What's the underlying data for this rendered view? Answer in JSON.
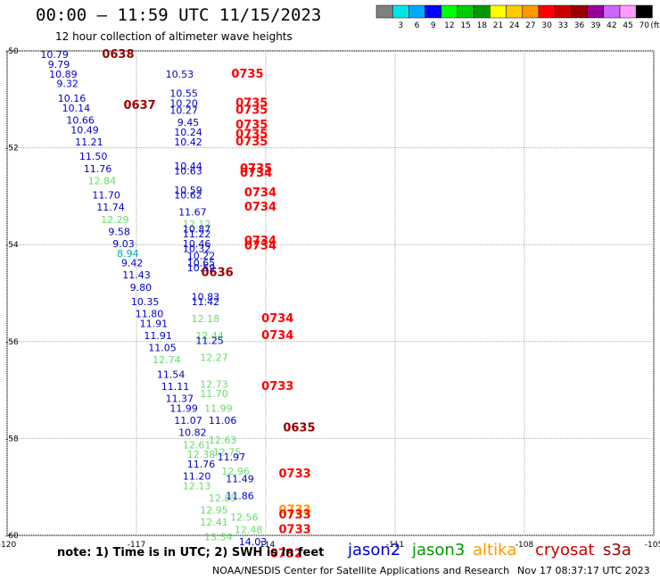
{
  "chart_data": {
    "type": "scatter",
    "title": "00:00 – 11:59 UTC 11/15/2023",
    "subtitle": "12 hour collection of altimeter wave heights",
    "xlim": [
      -120,
      -105
    ],
    "ylim": [
      -60,
      -50
    ],
    "x_ticks": [
      {
        "value": -120,
        "label": "-120"
      },
      {
        "value": -117,
        "label": "-117"
      },
      {
        "value": -114,
        "label": "-114"
      },
      {
        "value": -111,
        "label": "-111"
      },
      {
        "value": -108,
        "label": "-108"
      },
      {
        "value": -105,
        "label": "-105"
      }
    ],
    "y_ticks": [
      {
        "value": -50,
        "label": "-50"
      },
      {
        "value": -52,
        "label": "-52"
      },
      {
        "value": -54,
        "label": "-54"
      },
      {
        "value": -56,
        "label": "-56"
      },
      {
        "value": -58,
        "label": "-58"
      },
      {
        "value": -60,
        "label": "-60"
      }
    ],
    "grid": true,
    "colorbar": {
      "unit": "(ft)",
      "entries": [
        {
          "label": "",
          "color": "#808080"
        },
        {
          "label": "3",
          "color": "#00e6e6"
        },
        {
          "label": "6",
          "color": "#00aaff"
        },
        {
          "label": "9",
          "color": "#0000ff"
        },
        {
          "label": "12",
          "color": "#00ff00"
        },
        {
          "label": "15",
          "color": "#00cc00"
        },
        {
          "label": "18",
          "color": "#009900"
        },
        {
          "label": "21",
          "color": "#ffff00"
        },
        {
          "label": "24",
          "color": "#ffcc00"
        },
        {
          "label": "27",
          "color": "#ff9900"
        },
        {
          "label": "30",
          "color": "#ff0000"
        },
        {
          "label": "33",
          "color": "#cc0000"
        },
        {
          "label": "36",
          "color": "#990000"
        },
        {
          "label": "39",
          "color": "#990099"
        },
        {
          "label": "42",
          "color": "#cc66ff"
        },
        {
          "label": "45",
          "color": "#ff99ff"
        },
        {
          "label": "70",
          "color": "#000000"
        }
      ]
    },
    "time_labels": [
      {
        "text": "0638",
        "lon": -117.8,
        "lat": -50.15,
        "color": "#990000"
      },
      {
        "text": "0637",
        "lon": -117.3,
        "lat": -51.2,
        "color": "#990000"
      },
      {
        "text": "0636",
        "lon": -115.5,
        "lat": -54.65,
        "color": "#990000"
      },
      {
        "text": "0635",
        "lon": -113.6,
        "lat": -57.85,
        "color": "#990000"
      },
      {
        "text": "0735",
        "lon": -114.8,
        "lat": -50.55,
        "color": "#ff0000"
      },
      {
        "text": "0735",
        "lon": -114.7,
        "lat": -51.15,
        "color": "#ff0000"
      },
      {
        "text": "0735",
        "lon": -114.7,
        "lat": -51.3,
        "color": "#ff0000"
      },
      {
        "text": "0735",
        "lon": -114.7,
        "lat": -51.6,
        "color": "#ff0000"
      },
      {
        "text": "0735",
        "lon": -114.7,
        "lat": -51.8,
        "color": "#ff0000"
      },
      {
        "text": "0735",
        "lon": -114.7,
        "lat": -51.95,
        "color": "#ff0000"
      },
      {
        "text": "0735",
        "lon": -114.6,
        "lat": -52.5,
        "color": "#ff0000"
      },
      {
        "text": "0734",
        "lon": -114.6,
        "lat": -52.6,
        "color": "#ff0000"
      },
      {
        "text": "0734",
        "lon": -114.5,
        "lat": -53.0,
        "color": "#ff0000"
      },
      {
        "text": "0734",
        "lon": -114.5,
        "lat": -53.3,
        "color": "#ff0000"
      },
      {
        "text": "0734",
        "lon": -114.5,
        "lat": -54.0,
        "color": "#ff0000"
      },
      {
        "text": "0734",
        "lon": -114.5,
        "lat": -54.1,
        "color": "#ff0000"
      },
      {
        "text": "0734",
        "lon": -114.1,
        "lat": -55.6,
        "color": "#ff0000"
      },
      {
        "text": "0734",
        "lon": -114.1,
        "lat": -55.95,
        "color": "#ff0000"
      },
      {
        "text": "0733",
        "lon": -114.1,
        "lat": -57.0,
        "color": "#ff0000"
      },
      {
        "text": "0733",
        "lon": -113.7,
        "lat": -58.8,
        "color": "#ff0000"
      },
      {
        "text": "0733",
        "lon": -113.7,
        "lat": -59.55,
        "color": "#ff9900"
      },
      {
        "text": "0733",
        "lon": -113.7,
        "lat": -59.65,
        "color": "#ff0000"
      },
      {
        "text": "0733",
        "lon": -113.7,
        "lat": -59.95,
        "color": "#ff0000"
      },
      {
        "text": "0732",
        "lon": -113.9,
        "lat": -60.45,
        "color": "#ff0000"
      }
    ],
    "series": [
      {
        "points": [
          {
            "lon": -118.9,
            "lat": -50.15,
            "value": "10.79",
            "color": "#0000cc"
          },
          {
            "lon": -118.8,
            "lat": -50.35,
            "value": "9.79",
            "color": "#0000cc"
          },
          {
            "lon": -118.7,
            "lat": -50.55,
            "value": "10.89",
            "color": "#0000cc"
          },
          {
            "lon": -118.6,
            "lat": -50.75,
            "value": "9.32",
            "color": "#0000cc"
          },
          {
            "lon": -118.5,
            "lat": -51.05,
            "value": "10.16",
            "color": "#0000cc"
          },
          {
            "lon": -118.4,
            "lat": -51.25,
            "value": "10.14",
            "color": "#0000cc"
          },
          {
            "lon": -118.3,
            "lat": -51.5,
            "value": "10.66",
            "color": "#0000cc"
          },
          {
            "lon": -118.2,
            "lat": -51.7,
            "value": "10.49",
            "color": "#0000cc"
          },
          {
            "lon": -118.1,
            "lat": -51.95,
            "value": "11.21",
            "color": "#0000cc"
          },
          {
            "lon": -118.0,
            "lat": -52.25,
            "value": "11.50",
            "color": "#0000cc"
          },
          {
            "lon": -117.9,
            "lat": -52.5,
            "value": "11.76",
            "color": "#0000cc"
          },
          {
            "lon": -117.8,
            "lat": -52.75,
            "value": "12.84",
            "color": "#66dd66"
          },
          {
            "lon": -117.7,
            "lat": -53.05,
            "value": "11.70",
            "color": "#0000cc"
          },
          {
            "lon": -117.6,
            "lat": -53.3,
            "value": "11.74",
            "color": "#0000cc"
          },
          {
            "lon": -117.5,
            "lat": -53.55,
            "value": "12.29",
            "color": "#66dd66"
          },
          {
            "lon": -117.4,
            "lat": -53.8,
            "value": "9.58",
            "color": "#0000cc"
          },
          {
            "lon": -117.3,
            "lat": -54.05,
            "value": "9.03",
            "color": "#0000cc"
          },
          {
            "lon": -117.2,
            "lat": -54.25,
            "value": "8.94",
            "color": "#00aaaa"
          },
          {
            "lon": -117.1,
            "lat": -54.45,
            "value": "9.42",
            "color": "#0000cc"
          },
          {
            "lon": -117.0,
            "lat": -54.7,
            "value": "11.43",
            "color": "#0000cc"
          },
          {
            "lon": -116.9,
            "lat": -54.95,
            "value": "9.80",
            "color": "#0000cc"
          },
          {
            "lon": -116.8,
            "lat": -55.25,
            "value": "10.35",
            "color": "#0000cc"
          },
          {
            "lon": -116.7,
            "lat": -55.5,
            "value": "11.80",
            "color": "#0000cc"
          },
          {
            "lon": -116.6,
            "lat": -55.7,
            "value": "11.91",
            "color": "#0000cc"
          },
          {
            "lon": -116.5,
            "lat": -55.95,
            "value": "11.91",
            "color": "#0000cc"
          },
          {
            "lon": -116.4,
            "lat": -56.2,
            "value": "11.05",
            "color": "#0000cc"
          },
          {
            "lon": -116.3,
            "lat": -56.45,
            "value": "12.74",
            "color": "#66dd66"
          },
          {
            "lon": -116.2,
            "lat": -56.75,
            "value": "11.54",
            "color": "#0000cc"
          },
          {
            "lon": -116.1,
            "lat": -57.0,
            "value": "11.11",
            "color": "#0000cc"
          },
          {
            "lon": -116.0,
            "lat": -57.25,
            "value": "11.37",
            "color": "#0000cc"
          },
          {
            "lon": -115.9,
            "lat": -57.45,
            "value": "11.99",
            "color": "#0000cc"
          },
          {
            "lon": -115.8,
            "lat": -57.7,
            "value": "11.07",
            "color": "#0000cc"
          },
          {
            "lon": -115.7,
            "lat": -57.95,
            "value": "10.82",
            "color": "#0000cc"
          },
          {
            "lon": -115.6,
            "lat": -58.2,
            "value": "12.61",
            "color": "#66dd66"
          },
          {
            "lon": -115.5,
            "lat": -58.4,
            "value": "12.38",
            "color": "#66dd66"
          },
          {
            "lon": -115.5,
            "lat": -58.6,
            "value": "11.76",
            "color": "#0000cc"
          },
          {
            "lon": -115.6,
            "lat": -58.85,
            "value": "11.20",
            "color": "#0000cc"
          },
          {
            "lon": -115.6,
            "lat": -59.05,
            "value": "12.13",
            "color": "#66dd66"
          },
          {
            "lon": -115.0,
            "lat": -59.3,
            "value": "12.85",
            "color": "#66dd66"
          },
          {
            "lon": -115.2,
            "lat": -59.55,
            "value": "12.95",
            "color": "#66dd66"
          },
          {
            "lon": -115.2,
            "lat": -59.8,
            "value": "12.41",
            "color": "#66dd66"
          },
          {
            "lon": -115.1,
            "lat": -60.1,
            "value": "13.34",
            "color": "#66dd66"
          },
          {
            "lon": -116.0,
            "lat": -50.55,
            "value": "10.53",
            "color": "#0000cc"
          },
          {
            "lon": -115.9,
            "lat": -50.95,
            "value": "10.55",
            "color": "#0000cc"
          },
          {
            "lon": -115.9,
            "lat": -51.15,
            "value": "10.20",
            "color": "#0000cc"
          },
          {
            "lon": -115.9,
            "lat": -51.3,
            "value": "10.27",
            "color": "#0000cc"
          },
          {
            "lon": -115.8,
            "lat": -51.55,
            "value": "9.45",
            "color": "#0000cc"
          },
          {
            "lon": -115.8,
            "lat": -51.75,
            "value": "10.24",
            "color": "#0000cc"
          },
          {
            "lon": -115.8,
            "lat": -51.95,
            "value": "10.42",
            "color": "#0000cc"
          },
          {
            "lon": -115.8,
            "lat": -52.45,
            "value": "10.44",
            "color": "#0000cc"
          },
          {
            "lon": -115.8,
            "lat": -52.55,
            "value": "10.63",
            "color": "#0000cc"
          },
          {
            "lon": -115.8,
            "lat": -52.95,
            "value": "10.59",
            "color": "#0000cc"
          },
          {
            "lon": -115.8,
            "lat": -53.05,
            "value": "10.62",
            "color": "#0000cc"
          },
          {
            "lon": -115.7,
            "lat": -53.4,
            "value": "11.67",
            "color": "#0000cc"
          },
          {
            "lon": -115.6,
            "lat": -53.65,
            "value": "12.12",
            "color": "#66dd66"
          },
          {
            "lon": -115.6,
            "lat": -53.75,
            "value": "10.87",
            "color": "#0000cc"
          },
          {
            "lon": -115.6,
            "lat": -53.85,
            "value": "11.22",
            "color": "#0000cc"
          },
          {
            "lon": -115.6,
            "lat": -54.05,
            "value": "10.46",
            "color": "#0000cc"
          },
          {
            "lon": -115.6,
            "lat": -54.15,
            "value": "10.32",
            "color": "#0000cc"
          },
          {
            "lon": -115.5,
            "lat": -54.3,
            "value": "10.22",
            "color": "#0000cc"
          },
          {
            "lon": -115.5,
            "lat": -54.45,
            "value": "10.65",
            "color": "#0000cc"
          },
          {
            "lon": -115.5,
            "lat": -54.55,
            "value": "10.59",
            "color": "#0000cc"
          },
          {
            "lon": -115.4,
            "lat": -55.15,
            "value": "10.83",
            "color": "#0000cc"
          },
          {
            "lon": -115.4,
            "lat": -55.25,
            "value": "11.42",
            "color": "#0000cc"
          },
          {
            "lon": -115.4,
            "lat": -55.6,
            "value": "12.18",
            "color": "#66dd66"
          },
          {
            "lon": -115.3,
            "lat": -55.95,
            "value": "12.44",
            "color": "#66dd66"
          },
          {
            "lon": -115.3,
            "lat": -56.05,
            "value": "11.25",
            "color": "#0000cc"
          },
          {
            "lon": -115.2,
            "lat": -56.4,
            "value": "12.27",
            "color": "#66dd66"
          },
          {
            "lon": -115.2,
            "lat": -56.95,
            "value": "12.73",
            "color": "#66dd66"
          },
          {
            "lon": -115.2,
            "lat": -57.15,
            "value": "11.70",
            "color": "#66dd66"
          },
          {
            "lon": -115.1,
            "lat": -57.45,
            "value": "11.99",
            "color": "#66dd66"
          },
          {
            "lon": -115.0,
            "lat": -57.7,
            "value": "11.06",
            "color": "#0000cc"
          },
          {
            "lon": -115.0,
            "lat": -58.1,
            "value": "12.63",
            "color": "#66dd66"
          },
          {
            "lon": -114.9,
            "lat": -58.35,
            "value": "12.75",
            "color": "#66dd66"
          },
          {
            "lon": -114.8,
            "lat": -58.45,
            "value": "11.97",
            "color": "#0000cc"
          },
          {
            "lon": -114.7,
            "lat": -58.75,
            "value": "12.96",
            "color": "#66dd66"
          },
          {
            "lon": -114.6,
            "lat": -58.9,
            "value": "11.49",
            "color": "#0000cc"
          },
          {
            "lon": -114.6,
            "lat": -59.25,
            "value": "11.86",
            "color": "#0000cc"
          },
          {
            "lon": -114.5,
            "lat": -59.7,
            "value": "12.56",
            "color": "#66dd66"
          },
          {
            "lon": -114.4,
            "lat": -59.95,
            "value": "12.48",
            "color": "#66dd66"
          },
          {
            "lon": -114.3,
            "lat": -60.2,
            "value": "14.03",
            "color": "#0000cc"
          }
        ]
      }
    ]
  },
  "note": "note: 1) Time is in UTC; 2) SWH is in feet",
  "satellites": [
    {
      "name": "jason2",
      "color": "#0000cc"
    },
    {
      "name": "jason3",
      "color": "#009900"
    },
    {
      "name": "altika",
      "color": "#ff9900"
    },
    {
      "name": "cryosat",
      "color": "#cc0000"
    },
    {
      "name": "s3a",
      "color": "#990000"
    }
  ],
  "footer": {
    "left": "NOAA/NESDIS Center for Satellite Applications and Research",
    "right": "Nov 17 08:37:17 UTC 2023"
  }
}
